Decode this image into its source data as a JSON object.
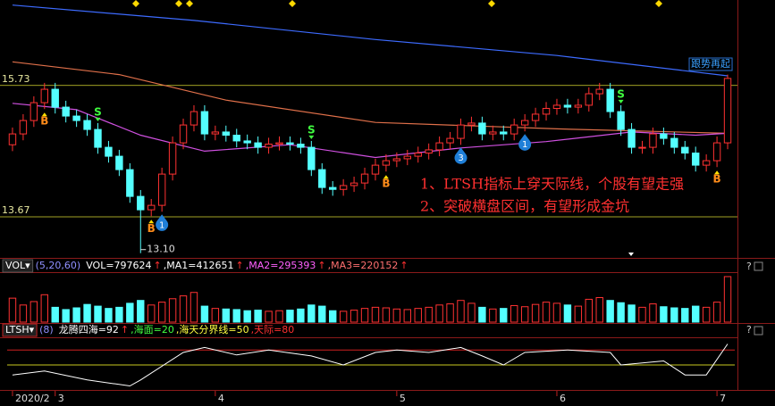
{
  "chart_data": [
    {
      "type": "candlestick",
      "xlim": [
        -0.5,
        67.5
      ],
      "xticks": [
        {
          "value": 0,
          "label": "2020/2"
        },
        {
          "value": 4,
          "label": "3"
        },
        {
          "value": 19,
          "label": "4"
        },
        {
          "value": 36,
          "label": "5"
        },
        {
          "value": 51,
          "label": "6"
        },
        {
          "value": 66,
          "label": "7"
        }
      ],
      "ylim": [
        13.04,
        17.07
      ],
      "yticks": [
        15.73,
        13.67
      ],
      "up_color": "#ff3232",
      "down_color": "#54ffff",
      "open": [
        14.8,
        14.97,
        15.18,
        15.46,
        15.67,
        15.39,
        15.25,
        15.18,
        15.04,
        14.76,
        14.62,
        14.41,
        13.99,
        13.78,
        13.85,
        14.34,
        14.83,
        15.11,
        15.32,
        14.97,
        15.0,
        14.95,
        14.86,
        14.83,
        14.76,
        14.81,
        14.83,
        14.81,
        14.76,
        14.41,
        14.13,
        14.1,
        14.16,
        14.2,
        14.34,
        14.48,
        14.55,
        14.58,
        14.62,
        14.67,
        14.72,
        14.83,
        14.9,
        15.11,
        15.14,
        14.97,
        15.0,
        14.97,
        15.11,
        15.18,
        15.28,
        15.37,
        15.42,
        15.39,
        15.42,
        15.6,
        15.67,
        15.32,
        15.04,
        14.76,
        14.76,
        14.97,
        14.9,
        14.76,
        14.67,
        14.48,
        14.55,
        14.83
      ],
      "high": [
        15.07,
        15.28,
        15.56,
        15.77,
        15.77,
        15.49,
        15.35,
        15.28,
        15.14,
        14.86,
        14.72,
        14.51,
        14.09,
        13.95,
        14.44,
        14.93,
        15.21,
        15.42,
        15.42,
        15.1,
        15.1,
        15.05,
        14.96,
        14.93,
        14.91,
        14.93,
        14.93,
        14.91,
        14.86,
        14.51,
        14.23,
        14.26,
        14.3,
        14.44,
        14.58,
        14.65,
        14.68,
        14.72,
        14.77,
        14.82,
        14.93,
        15.0,
        15.21,
        15.24,
        15.24,
        15.1,
        15.1,
        15.21,
        15.28,
        15.38,
        15.47,
        15.52,
        15.52,
        15.52,
        15.7,
        15.77,
        15.77,
        15.42,
        15.14,
        14.86,
        15.07,
        15.07,
        15.0,
        14.86,
        14.77,
        14.65,
        14.93,
        15.9
      ],
      "low": [
        14.7,
        14.87,
        15.08,
        15.36,
        15.29,
        15.15,
        15.08,
        14.94,
        14.66,
        14.52,
        14.31,
        13.89,
        13.1,
        13.68,
        13.75,
        14.24,
        14.73,
        15.01,
        14.87,
        14.87,
        14.85,
        14.76,
        14.73,
        14.66,
        14.66,
        14.71,
        14.71,
        14.66,
        14.31,
        14.03,
        14.0,
        14.0,
        14.06,
        14.1,
        14.24,
        14.38,
        14.45,
        14.48,
        14.52,
        14.57,
        14.62,
        14.73,
        14.8,
        15.01,
        14.87,
        14.87,
        14.87,
        14.87,
        15.01,
        15.08,
        15.18,
        15.27,
        15.29,
        15.29,
        15.32,
        15.5,
        15.22,
        14.94,
        14.66,
        14.66,
        14.66,
        14.8,
        14.66,
        14.57,
        14.38,
        14.38,
        14.45,
        14.73
      ],
      "close": [
        14.97,
        15.18,
        15.46,
        15.67,
        15.39,
        15.25,
        15.18,
        15.04,
        14.76,
        14.62,
        14.41,
        13.99,
        13.78,
        13.85,
        14.34,
        14.83,
        15.11,
        15.32,
        14.97,
        15.0,
        14.95,
        14.86,
        14.83,
        14.76,
        14.81,
        14.83,
        14.81,
        14.76,
        14.41,
        14.13,
        14.1,
        14.16,
        14.2,
        14.34,
        14.48,
        14.55,
        14.58,
        14.62,
        14.67,
        14.72,
        14.83,
        14.9,
        15.11,
        15.14,
        14.97,
        15.0,
        14.97,
        15.11,
        15.18,
        15.28,
        15.37,
        15.42,
        15.39,
        15.42,
        15.6,
        15.67,
        15.32,
        15.04,
        14.76,
        14.76,
        14.97,
        14.9,
        14.76,
        14.67,
        14.48,
        14.55,
        14.83,
        15.84
      ],
      "lines": [
        {
          "color": "#3d6bff",
          "x": [
            0,
            17,
            34,
            51,
            67
          ],
          "values": [
            16.99,
            16.75,
            16.45,
            16.2,
            15.88
          ]
        },
        {
          "color": "#e0704a",
          "x": [
            0,
            10,
            20,
            34,
            51,
            67
          ],
          "values": [
            16.1,
            15.9,
            15.5,
            15.15,
            15.05,
            14.98
          ]
        },
        {
          "color": "#d050e0",
          "x": [
            0,
            6,
            12,
            18,
            26,
            34,
            42,
            50,
            58,
            64,
            67
          ],
          "values": [
            15.45,
            15.35,
            14.95,
            14.7,
            14.8,
            14.6,
            14.75,
            14.85,
            15.0,
            14.95,
            14.98
          ]
        }
      ],
      "low_label": {
        "x": 12,
        "label": "13.10"
      },
      "signals": [
        {
          "x": 3,
          "label": "B"
        },
        {
          "x": 13,
          "label": "B"
        },
        {
          "x": 35,
          "label": "B"
        },
        {
          "x": 66,
          "label": "B"
        },
        {
          "x": 8,
          "label": "S"
        },
        {
          "x": 28,
          "label": "S"
        },
        {
          "x": 57,
          "label": "S"
        }
      ],
      "badges": [
        {
          "x": 14,
          "label": "1"
        },
        {
          "x": 42,
          "label": "3"
        },
        {
          "x": 48,
          "label": "1"
        }
      ],
      "tag": "跟势再起",
      "annotations": [
        "1、LTSH指标上穿天际线，个股有望走强",
        "2、突破横盘区间，有望形成金坑"
      ]
    },
    {
      "type": "bar",
      "title": "VOL▾",
      "params": "(5,20,60)",
      "help": "?",
      "legend": [
        {
          "text": "VOL=797624",
          "arrow": "↑",
          "color": "#ffffff"
        },
        {
          "text": ",MA1=412651",
          "arrow": "↑",
          "color": "#ffffff"
        },
        {
          "text": ",MA2=295393",
          "arrow": "↑",
          "color": "#ff60ff"
        },
        {
          "text": ",MA3=220152",
          "arrow": "↑",
          "color": "#ff7070"
        }
      ],
      "ylim": [
        0,
        860000
      ],
      "values": [
        420000,
        300000,
        360000,
        480000,
        260000,
        220000,
        250000,
        310000,
        280000,
        240000,
        260000,
        330000,
        380000,
        300000,
        350000,
        410000,
        460000,
        520000,
        280000,
        240000,
        230000,
        220000,
        200000,
        210000,
        190000,
        200000,
        210000,
        230000,
        300000,
        280000,
        200000,
        190000,
        210000,
        240000,
        260000,
        250000,
        230000,
        220000,
        240000,
        260000,
        300000,
        320000,
        380000,
        330000,
        260000,
        230000,
        240000,
        290000,
        270000,
        310000,
        350000,
        330000,
        300000,
        280000,
        400000,
        430000,
        380000,
        340000,
        300000,
        260000,
        320000,
        270000,
        250000,
        240000,
        280000,
        260000,
        350000,
        797624
      ]
    },
    {
      "type": "line",
      "title": "LTSH▾",
      "params": "(8)",
      "help": "?",
      "legend": [
        {
          "text": "龙腾四海=92",
          "arrow": "↑",
          "color": "#ffffff"
        },
        {
          "text": ",海面=20",
          "arrow": "",
          "color": "#40ff40"
        },
        {
          "text": ",海天分界线=50",
          "arrow": "",
          "color": "#ffff40"
        },
        {
          "text": ",天际=80",
          "arrow": "",
          "color": "#ff3030"
        }
      ],
      "ylim": [
        0,
        100
      ],
      "levels": [
        {
          "value": 80,
          "color": "#d02020"
        },
        {
          "value": 50,
          "color": "#c8c820"
        }
      ],
      "color": "#ffffff",
      "x": [
        0,
        3,
        7,
        11,
        12,
        16,
        18,
        21,
        24,
        28,
        31,
        34,
        36,
        39,
        42,
        44,
        46,
        48,
        52,
        56,
        57,
        61,
        63,
        65,
        67
      ],
      "values": [
        30,
        38,
        20,
        8,
        20,
        75,
        85,
        70,
        80,
        68,
        50,
        75,
        80,
        75,
        85,
        68,
        50,
        75,
        80,
        75,
        50,
        58,
        30,
        30,
        92
      ]
    }
  ]
}
